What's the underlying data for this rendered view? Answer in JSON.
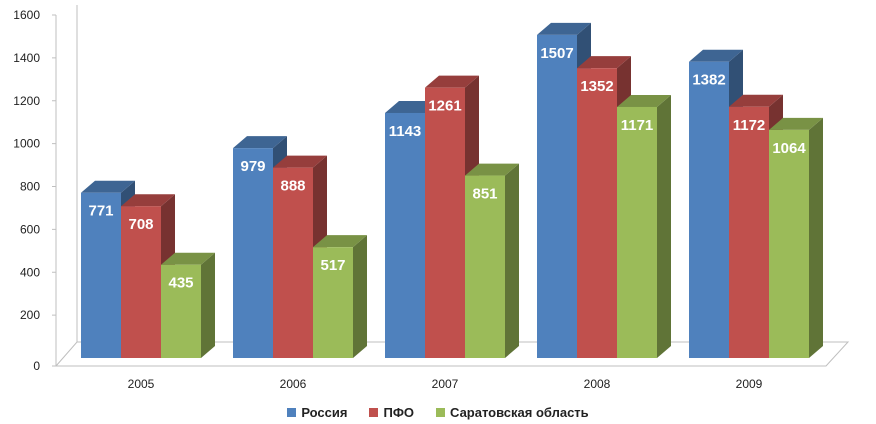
{
  "chart_data": {
    "type": "bar",
    "title": "",
    "xlabel": "",
    "ylabel": "",
    "categories": [
      "2005",
      "2006",
      "2007",
      "2008",
      "2009"
    ],
    "series": [
      {
        "name": "Россия",
        "values": [
          771,
          979,
          1143,
          1507,
          1382
        ],
        "color": "#4f81bd"
      },
      {
        "name": "ПФО",
        "values": [
          708,
          888,
          1261,
          1352,
          1172
        ],
        "color": "#c0504d"
      },
      {
        "name": "Саратовская область",
        "values": [
          435,
          517,
          851,
          1171,
          1064
        ],
        "color": "#9bbb59"
      }
    ],
    "ylim": [
      0,
      1600
    ],
    "yticks": [
      "0",
      "200",
      "400",
      "600",
      "800",
      "1000",
      "1200",
      "1400",
      "1600"
    ],
    "grid": false,
    "legend_position": "bottom",
    "style": "3d-clustered-column"
  }
}
